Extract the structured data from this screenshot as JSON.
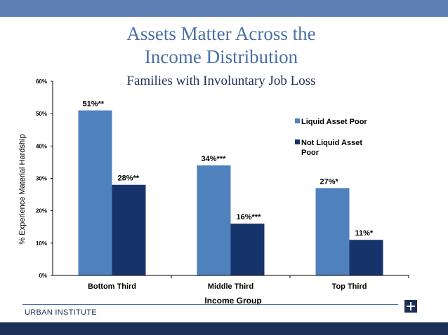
{
  "slide": {
    "title_line1": "Assets Matter Across the",
    "title_line2": "Income Distribution",
    "footer": "URBAN INSTITUTE"
  },
  "colors": {
    "top_bar": "#5e7fb3",
    "bottom_bar": "#1c2f55",
    "liquid_asset_poor": "#4f81bd",
    "not_liquid_asset_poor": "#17336b"
  },
  "chart_data": {
    "type": "bar",
    "title": "Families with Involuntary Job Loss",
    "xlabel": "Income Group",
    "ylabel": "% Experience Material Hardship",
    "categories": [
      "Bottom Third",
      "Middle Third",
      "Top Third"
    ],
    "ylim": [
      0,
      60
    ],
    "yticks": [
      "0%",
      "10%",
      "20%",
      "30%",
      "40%",
      "50%",
      "60%"
    ],
    "grid": false,
    "legend_position": "right",
    "series": [
      {
        "name": "Liquid Asset Poor",
        "values": [
          51,
          34,
          27
        ],
        "labels": [
          "51%**",
          "34%***",
          "27%*"
        ]
      },
      {
        "name": "Not Liquid Asset Poor",
        "legend_lines": [
          "Not Liquid Asset",
          "Poor"
        ],
        "values": [
          28,
          16,
          11
        ],
        "labels": [
          "28%**",
          "16%***",
          "11%*"
        ]
      }
    ]
  }
}
